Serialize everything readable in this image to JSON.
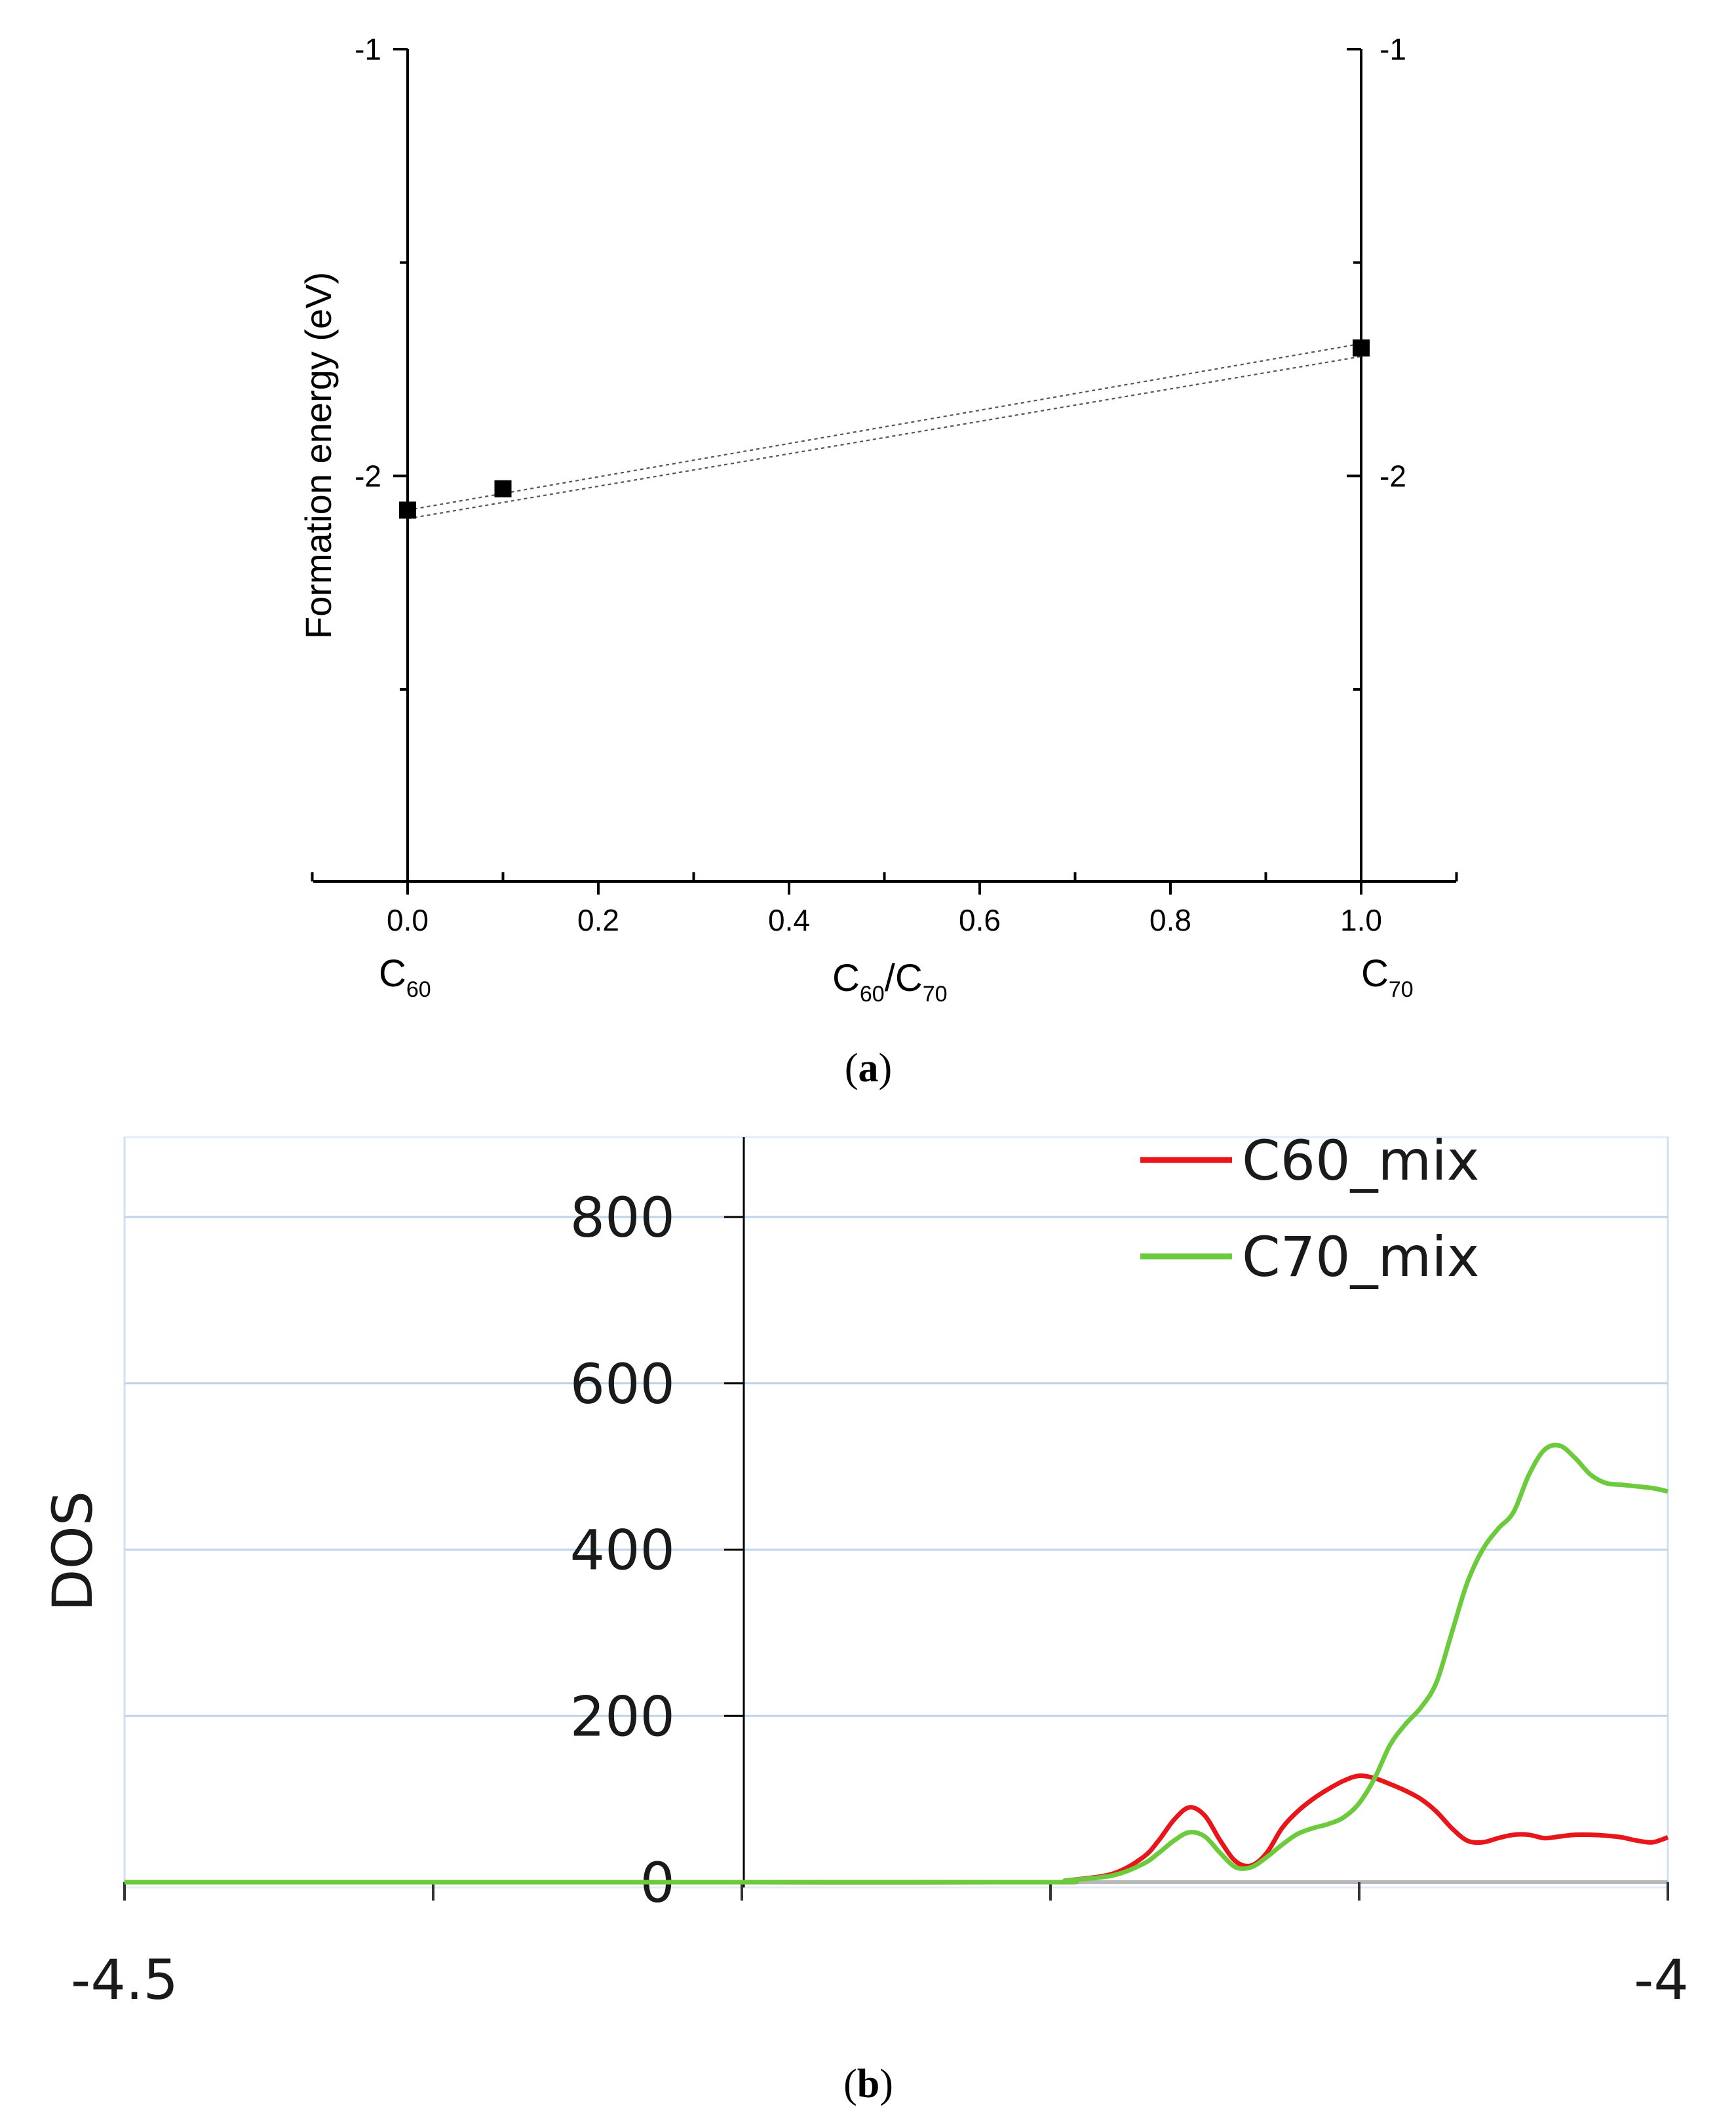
{
  "chart_data": [
    {
      "type": "scatter",
      "panel": "(a)",
      "caption_letter": "a",
      "ylabel": "Formation energy (eV)",
      "xlabel_main": "C",
      "xlabel_sub1": "60",
      "xlabel_slash": "/C",
      "xlabel_sub2": "70",
      "left_end_label": "C",
      "left_end_sub": "60",
      "right_end_label": "C",
      "right_end_sub": "70",
      "xlim": [
        -0.1,
        1.1
      ],
      "ylim": [
        -2.95,
        -1.0
      ],
      "xticks": [
        0.0,
        0.2,
        0.4,
        0.6,
        0.8,
        1.0
      ],
      "xtick_labels": [
        "0.0",
        "0.2",
        "0.4",
        "0.6",
        "0.8",
        "1.0"
      ],
      "yticks": [
        -1,
        -2
      ],
      "ytick_labels": [
        "-1",
        "-2"
      ],
      "points": [
        {
          "x": 0.0,
          "y": -2.08
        },
        {
          "x": 0.1,
          "y": -2.03
        },
        {
          "x": 1.0,
          "y": -1.7
        }
      ],
      "fit_lines": [
        {
          "x": [
            0.0,
            1.0
          ],
          "y": [
            -2.1,
            -1.72
          ]
        },
        {
          "x": [
            0.0,
            1.0
          ],
          "y": [
            -2.08,
            -1.69
          ]
        }
      ]
    },
    {
      "type": "line",
      "panel": "(b)",
      "caption_letter": "b",
      "ylabel": "DOS",
      "xlim": [
        -4.5,
        -4.0
      ],
      "ylim": [
        0,
        900
      ],
      "yticks": [
        0,
        200,
        400,
        600,
        800
      ],
      "ytick_labels": [
        "0",
        "200",
        "400",
        "600",
        "800"
      ],
      "xtick_labels": [
        "-4.5",
        "-4"
      ],
      "series": [
        {
          "name": "C60_mix",
          "color": "#e8161b",
          "x": [
            -4.5,
            -4.4,
            -4.3,
            -4.2,
            -4.195,
            -4.18,
            -4.17,
            -4.165,
            -4.16,
            -4.155,
            -4.15,
            -4.145,
            -4.14,
            -4.135,
            -4.13,
            -4.125,
            -4.12,
            -4.115,
            -4.11,
            -4.105,
            -4.1,
            -4.095,
            -4.09,
            -4.085,
            -4.08,
            -4.075,
            -4.07,
            -4.065,
            -4.06,
            -4.055,
            -4.05,
            -4.045,
            -4.04,
            -4.035,
            -4.03,
            -4.025,
            -4.02,
            -4.015,
            -4.01,
            -4.005,
            -4.0
          ],
          "y": [
            0,
            0,
            0,
            0,
            2,
            10,
            30,
            50,
            75,
            90,
            80,
            50,
            25,
            20,
            35,
            65,
            85,
            100,
            112,
            122,
            128,
            125,
            118,
            110,
            100,
            85,
            65,
            50,
            48,
            53,
            57,
            57,
            53,
            55,
            57,
            57,
            56,
            54,
            50,
            48,
            54
          ]
        },
        {
          "name": "C70_mix",
          "color": "#6ccb3c",
          "x": [
            -4.5,
            -4.4,
            -4.3,
            -4.2,
            -4.195,
            -4.18,
            -4.17,
            -4.165,
            -4.16,
            -4.155,
            -4.15,
            -4.145,
            -4.14,
            -4.135,
            -4.13,
            -4.125,
            -4.12,
            -4.115,
            -4.11,
            -4.105,
            -4.1,
            -4.095,
            -4.09,
            -4.085,
            -4.08,
            -4.075,
            -4.07,
            -4.065,
            -4.06,
            -4.055,
            -4.05,
            -4.045,
            -4.04,
            -4.035,
            -4.03,
            -4.025,
            -4.02,
            -4.015,
            -4.01,
            -4.005,
            -4.0
          ],
          "y": [
            0,
            0,
            0,
            0,
            2,
            8,
            22,
            35,
            50,
            60,
            55,
            35,
            18,
            18,
            30,
            45,
            58,
            65,
            70,
            78,
            95,
            125,
            165,
            190,
            210,
            240,
            300,
            360,
            400,
            425,
            445,
            490,
            520,
            525,
            510,
            490,
            480,
            478,
            476,
            474,
            470
          ]
        }
      ]
    }
  ]
}
